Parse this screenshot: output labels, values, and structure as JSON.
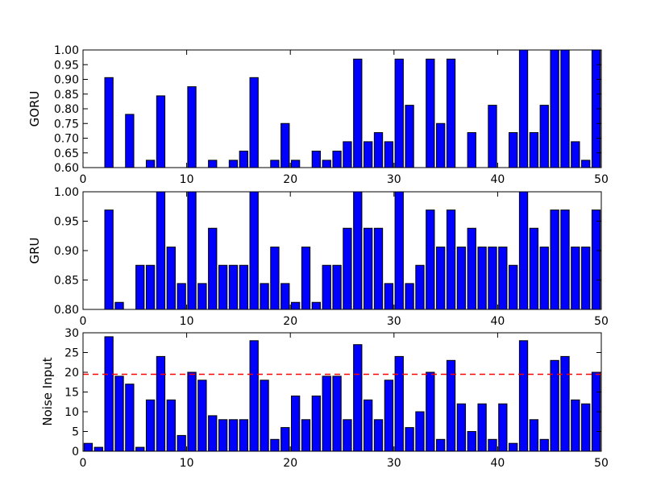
{
  "chart_data": [
    {
      "type": "bar",
      "ylabel": "GORU",
      "xlim": [
        0,
        50
      ],
      "ylim": [
        0.6,
        1.0
      ],
      "xticks": [
        "0",
        "10",
        "20",
        "30",
        "40",
        "50"
      ],
      "yticks": [
        "0.60",
        "0.65",
        "0.70",
        "0.75",
        "0.80",
        "0.85",
        "0.90",
        "0.95",
        "1.00"
      ],
      "bar_color": "#0000ff",
      "x": [
        0,
        1,
        2,
        3,
        4,
        5,
        6,
        7,
        8,
        9,
        10,
        11,
        12,
        13,
        14,
        15,
        16,
        17,
        18,
        19,
        20,
        21,
        22,
        23,
        24,
        25,
        26,
        27,
        28,
        29,
        30,
        31,
        32,
        33,
        34,
        35,
        36,
        37,
        38,
        39,
        40,
        41,
        42,
        43,
        44,
        45,
        46,
        47,
        48,
        49
      ],
      "values": [
        0.594,
        0.594,
        0.906,
        0.594,
        0.781,
        0.594,
        0.625,
        0.844,
        0.594,
        0.594,
        0.875,
        0.594,
        0.625,
        0.594,
        0.625,
        0.656,
        0.906,
        0.594,
        0.625,
        0.75,
        0.625,
        0.594,
        0.656,
        0.625,
        0.656,
        0.688,
        0.969,
        0.688,
        0.719,
        0.688,
        0.969,
        0.812,
        0.594,
        0.969,
        0.75,
        0.969,
        0.594,
        0.719,
        0.594,
        0.812,
        0.594,
        0.719,
        1.0,
        0.719,
        0.812,
        1.0,
        1.0,
        0.688,
        0.625,
        1.0
      ]
    },
    {
      "type": "bar",
      "ylabel": "GRU",
      "xlim": [
        0,
        50
      ],
      "ylim": [
        0.8,
        1.0
      ],
      "xticks": [
        "0",
        "10",
        "20",
        "30",
        "40",
        "50"
      ],
      "yticks": [
        "0.80",
        "0.85",
        "0.90",
        "0.95",
        "1.00"
      ],
      "bar_color": "#0000ff",
      "x": [
        0,
        1,
        2,
        3,
        4,
        5,
        6,
        7,
        8,
        9,
        10,
        11,
        12,
        13,
        14,
        15,
        16,
        17,
        18,
        19,
        20,
        21,
        22,
        23,
        24,
        25,
        26,
        27,
        28,
        29,
        30,
        31,
        32,
        33,
        34,
        35,
        36,
        37,
        38,
        39,
        40,
        41,
        42,
        43,
        44,
        45,
        46,
        47,
        48,
        49
      ],
      "values": [
        0.781,
        0.781,
        0.969,
        0.812,
        0.781,
        0.875,
        0.875,
        1.0,
        0.906,
        0.844,
        1.0,
        0.844,
        0.938,
        0.875,
        0.875,
        0.875,
        1.0,
        0.844,
        0.906,
        0.844,
        0.812,
        0.906,
        0.812,
        0.875,
        0.875,
        0.938,
        1.0,
        0.938,
        0.938,
        0.844,
        1.0,
        0.844,
        0.875,
        0.969,
        0.906,
        0.969,
        0.906,
        0.938,
        0.906,
        0.906,
        0.906,
        0.875,
        1.0,
        0.938,
        0.906,
        0.969,
        0.969,
        0.906,
        0.906,
        0.969
      ]
    },
    {
      "type": "bar",
      "ylabel": "Noise Input",
      "xlim": [
        0,
        50
      ],
      "ylim": [
        0,
        30
      ],
      "xticks": [
        "0",
        "10",
        "20",
        "30",
        "40",
        "50"
      ],
      "yticks": [
        "0",
        "5",
        "10",
        "15",
        "20",
        "25",
        "30"
      ],
      "bar_color": "#0000ff",
      "threshold": 19.5,
      "threshold_color": "#ff0000",
      "x": [
        0,
        1,
        2,
        3,
        4,
        5,
        6,
        7,
        8,
        9,
        10,
        11,
        12,
        13,
        14,
        15,
        16,
        17,
        18,
        19,
        20,
        21,
        22,
        23,
        24,
        25,
        26,
        27,
        28,
        29,
        30,
        31,
        32,
        33,
        34,
        35,
        36,
        37,
        38,
        39,
        40,
        41,
        42,
        43,
        44,
        45,
        46,
        47,
        48,
        49
      ],
      "values": [
        2,
        1,
        29,
        19,
        17,
        1,
        13,
        24,
        13,
        4,
        20,
        18,
        9,
        8,
        8,
        8,
        28,
        18,
        3,
        6,
        14,
        8,
        14,
        19,
        19,
        8,
        27,
        13,
        8,
        18,
        24,
        6,
        10,
        20,
        3,
        23,
        12,
        5,
        12,
        3,
        12,
        2,
        28,
        8,
        3,
        23,
        24,
        13,
        12,
        20
      ]
    }
  ]
}
